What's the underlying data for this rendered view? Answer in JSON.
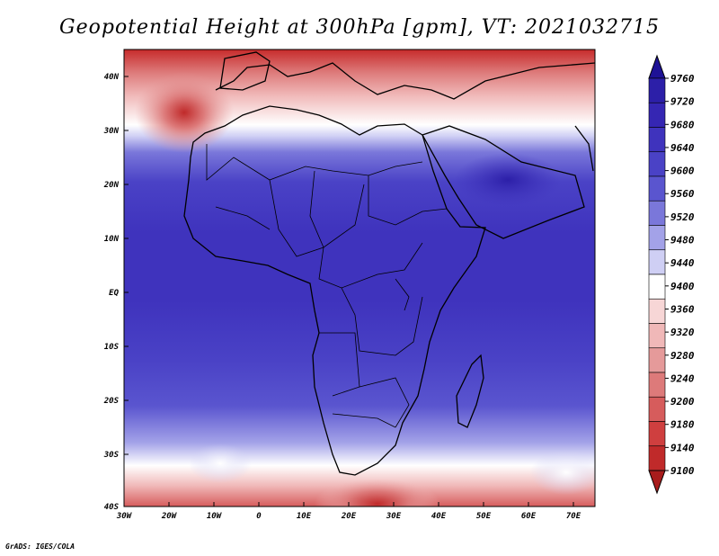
{
  "title": "Geopotential Height at 300hPa [gpm], VT: 2021032715",
  "footer": "GrADS: IGES/COLA",
  "lat_labels": [
    "40N",
    "30N",
    "20N",
    "10N",
    "EQ",
    "10S",
    "20S",
    "30S",
    "40S"
  ],
  "lon_labels": [
    "30W",
    "20W",
    "10W",
    "0",
    "10E",
    "20E",
    "30E",
    "40E",
    "50E",
    "60E",
    "70E"
  ],
  "colorbar": {
    "levels": [
      "9760",
      "9720",
      "9680",
      "9640",
      "9600",
      "9560",
      "9520",
      "9480",
      "9440",
      "9400",
      "9360",
      "9320",
      "9280",
      "9240",
      "9200",
      "9180",
      "9140",
      "9100"
    ],
    "colors": [
      "#1e1296",
      "#2c1fa8",
      "#3526b3",
      "#3f33bd",
      "#4a42c6",
      "#5a55cf",
      "#7a77da",
      "#a3a2e8",
      "#cfcff4",
      "#ffffff",
      "#f7d6d6",
      "#f0b8b8",
      "#e59a9a",
      "#dd7a7a",
      "#d65c5c",
      "#cf3f3f",
      "#c02a2a",
      "#a81c1c"
    ]
  },
  "map": {
    "domain": "Africa",
    "lon_range": [
      -30,
      75
    ],
    "lat_range": [
      -40,
      45
    ]
  },
  "chart_data": {
    "type": "heatmap",
    "title": "Geopotential Height at 300hPa [gpm], VT: 2021032715",
    "units": "gpm",
    "x_ticks": [
      "30W",
      "20W",
      "10W",
      "0",
      "10E",
      "20E",
      "30E",
      "40E",
      "50E",
      "60E",
      "70E"
    ],
    "y_ticks": [
      "40N",
      "30N",
      "20N",
      "10N",
      "EQ",
      "10S",
      "20S",
      "30S",
      "40S"
    ],
    "contour_levels": [
      9100,
      9140,
      9180,
      9200,
      9240,
      9280,
      9320,
      9360,
      9400,
      9440,
      9480,
      9520,
      9560,
      9600,
      9640,
      9680,
      9720,
      9760
    ]
  }
}
